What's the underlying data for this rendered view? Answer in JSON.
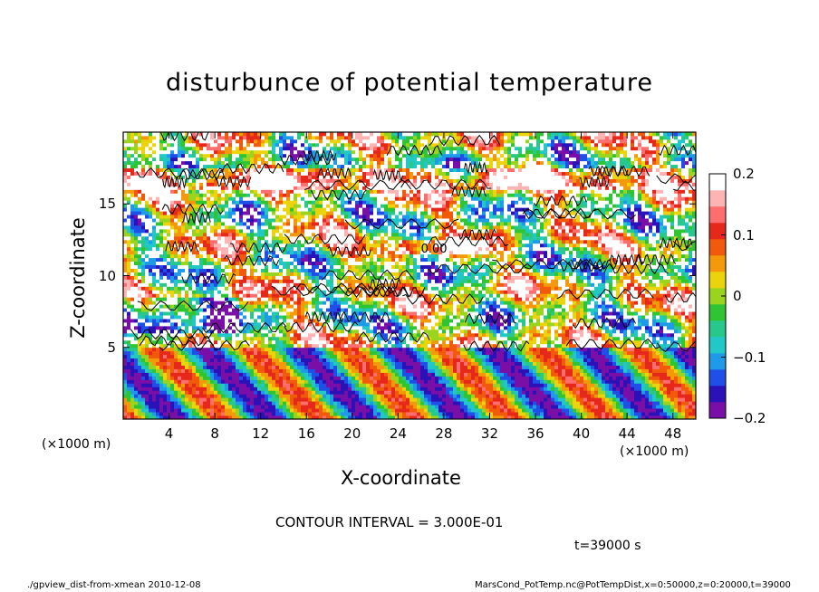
{
  "chart_data": {
    "type": "heatmap",
    "title": "disturbunce of potential temperature",
    "xlabel": "X-coordinate",
    "ylabel": "Z-coordinate",
    "x_unit": "(×1000 m)",
    "y_unit": "(×1000 m)",
    "xlim": [
      0,
      50
    ],
    "ylim": [
      0,
      20
    ],
    "x_ticks": [
      "4",
      "8",
      "12",
      "16",
      "20",
      "24",
      "28",
      "32",
      "36",
      "40",
      "44",
      "48"
    ],
    "x_tick_values": [
      4,
      8,
      12,
      16,
      20,
      24,
      28,
      32,
      36,
      40,
      44,
      48
    ],
    "y_ticks": [
      "5",
      "10",
      "15"
    ],
    "y_tick_values": [
      5,
      10,
      15
    ],
    "colorbar": {
      "min": -0.2,
      "max": 0.2,
      "tick_labels": [
        "0.2",
        "0.1",
        "0",
        "−0.1",
        "−0.2"
      ],
      "tick_values": [
        0.2,
        0.1,
        0,
        -0.1,
        -0.2
      ],
      "colors": [
        "#7a0fa8",
        "#2a12b8",
        "#1f4fe6",
        "#1e9ae8",
        "#22c7c7",
        "#28c88c",
        "#2fc432",
        "#9ad41e",
        "#ecd40c",
        "#f49a0a",
        "#f05a0a",
        "#e6281a",
        "#ff6e6e",
        "#ffb4b4",
        "#ffffff"
      ]
    },
    "contour_interval_text": "CONTOUR INTERVAL = 3.000E-01",
    "contour_label": "0.00",
    "time_text": "t=39000 s"
  },
  "footer": {
    "left": "./gpview_dist-from-xmean  2010-12-08",
    "right": "MarsCond_PotTemp.nc@PotTempDist,x=0:50000,z=0:20000,t=39000"
  }
}
